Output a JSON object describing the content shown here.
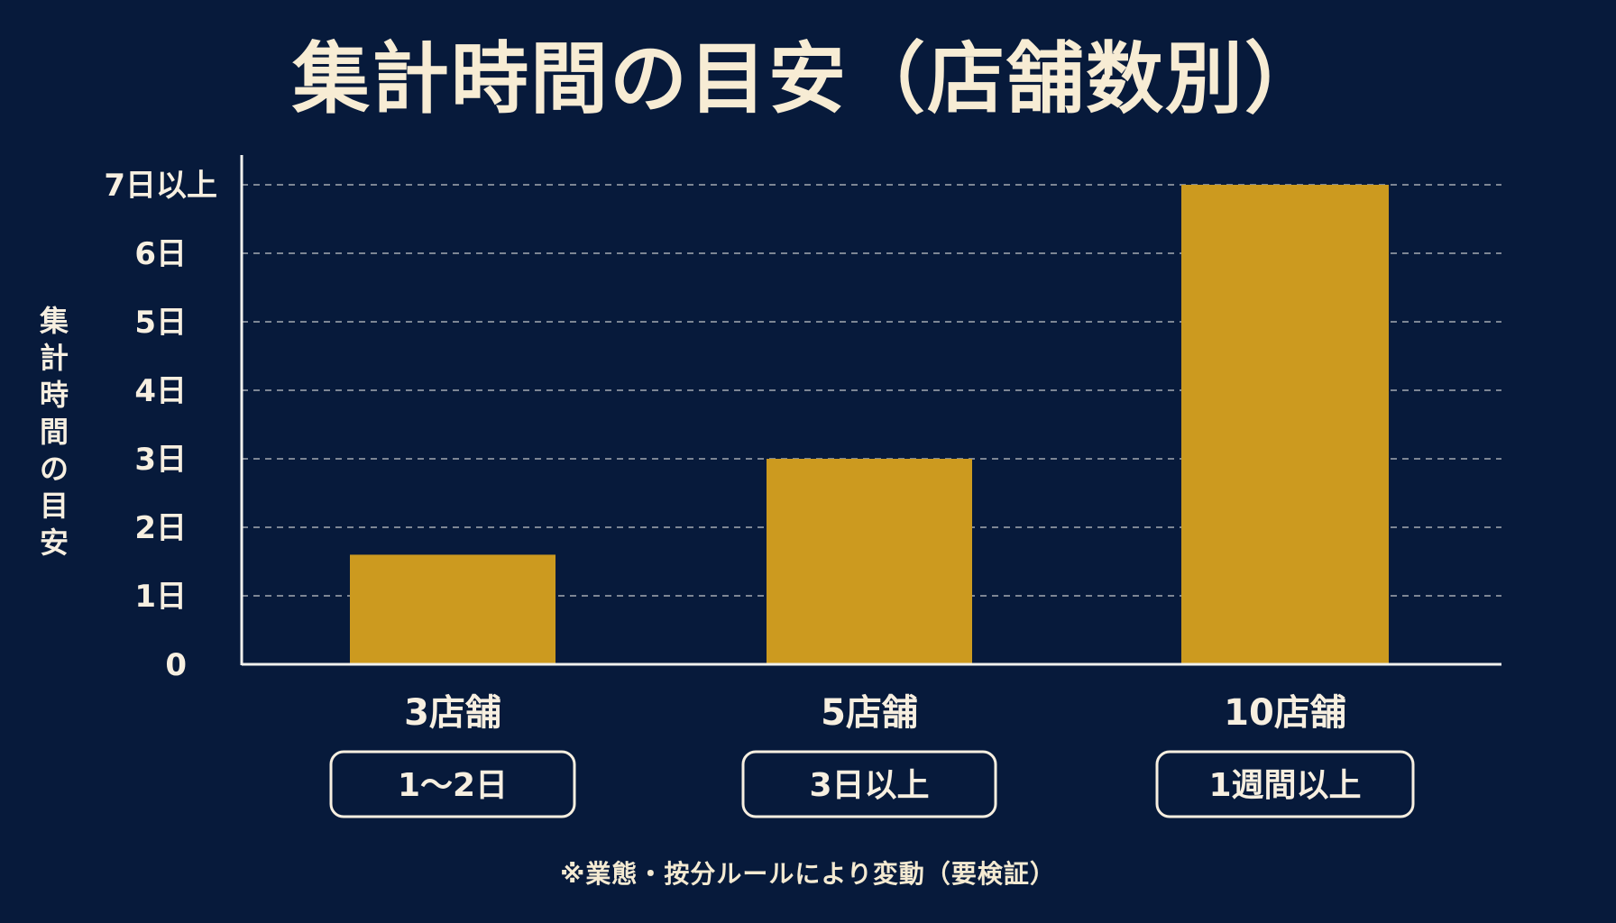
{
  "chart_data": {
    "type": "bar",
    "title": "集計時間の目安（店舗数別）",
    "ylabel": "集計時間の目安",
    "xlabel": "",
    "categories": [
      "3店舗",
      "5店舗",
      "10店舗"
    ],
    "values": [
      1.6,
      3,
      7
    ],
    "category_badges": [
      "1〜2日",
      "3日以上",
      "1週間以上"
    ],
    "ylim": [
      0,
      7
    ],
    "y_ticks": [
      {
        "value": 0,
        "label": "0"
      },
      {
        "value": 1,
        "label": "1日"
      },
      {
        "value": 2,
        "label": "2日"
      },
      {
        "value": 3,
        "label": "3日"
      },
      {
        "value": 4,
        "label": "4日"
      },
      {
        "value": 5,
        "label": "5日"
      },
      {
        "value": 6,
        "label": "6日"
      },
      {
        "value": 7,
        "label": "7日以上"
      }
    ],
    "grid": true,
    "note": "※業態・按分ルールにより変動（要検証）",
    "colors": {
      "background": "#071a3b",
      "bar": "#cc9a1f",
      "text": "#f7efe0",
      "axis": "#f1f1ee",
      "grid": "#d9d9d9"
    }
  }
}
